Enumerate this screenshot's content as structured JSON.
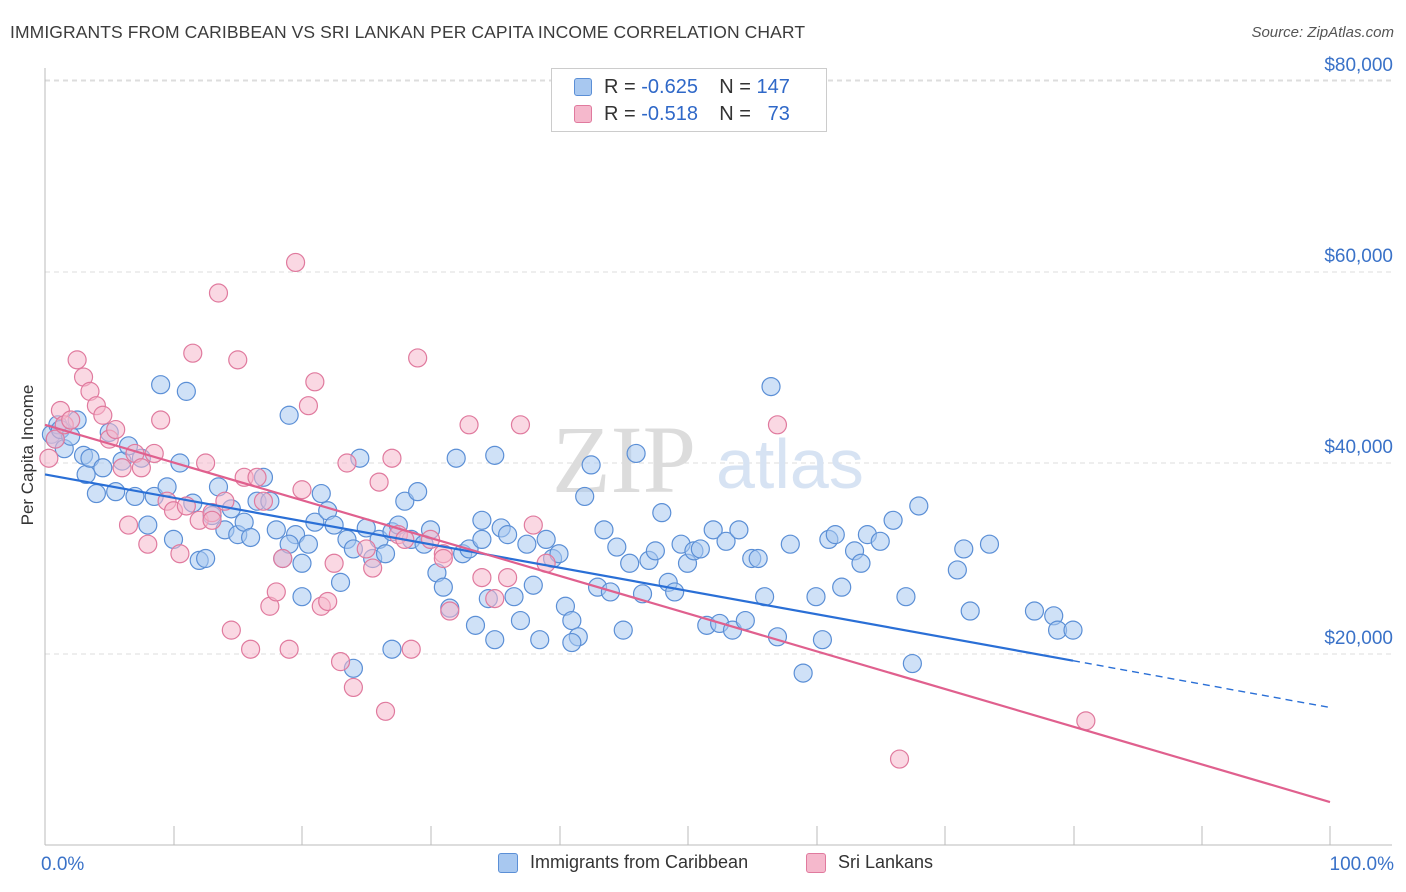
{
  "title": "IMMIGRANTS FROM CARIBBEAN VS SRI LANKAN PER CAPITA INCOME CORRELATION CHART",
  "source": "Source: ZipAtlas.com",
  "watermark": {
    "zip": "ZIP",
    "atlas": "atlas"
  },
  "colors": {
    "blue_fill": "#a8c8f0",
    "blue_stroke": "#5b8fd6",
    "blue_line": "#2a6fd6",
    "pink_fill": "#f5b8cc",
    "pink_stroke": "#e07a9e",
    "pink_line": "#e0608e",
    "axis_text": "#3a72c8",
    "grid": "#dddddd"
  },
  "legend": {
    "rows": [
      {
        "r_label": "R =",
        "r_value": "-0.625",
        "n_label": "N =",
        "n_value": "147",
        "color": "blue"
      },
      {
        "r_label": "R =",
        "r_value": "-0.518",
        "n_label": "N =",
        "n_value": "73",
        "color": "pink"
      }
    ]
  },
  "bottom_legend": {
    "series1": "Immigrants from Caribbean",
    "series2": "Sri Lankans"
  },
  "chart_data": {
    "type": "scatter",
    "ylabel": "Per Capita Income",
    "xlabel": "",
    "x_tick_labels": {
      "min": "0.0%",
      "max": "100.0%"
    },
    "xlim": [
      0,
      100
    ],
    "ylim": [
      0,
      80000
    ],
    "y_ticks": [
      {
        "value": 20000,
        "label": "$20,000"
      },
      {
        "value": 40000,
        "label": "$40,000"
      },
      {
        "value": 60000,
        "label": "$60,000"
      },
      {
        "value": 80000,
        "label": "$80,000"
      }
    ],
    "grid": true,
    "series": [
      {
        "name": "Immigrants from Caribbean",
        "color": "blue",
        "trend": {
          "x0": 0,
          "y0": 38800,
          "x1": 80,
          "y1": 19300,
          "dashed_to_x": 100,
          "dashed_to_y": 14400
        },
        "points": [
          [
            0.5,
            43000
          ],
          [
            0.8,
            42500
          ],
          [
            1,
            44000
          ],
          [
            1.2,
            43500
          ],
          [
            1.5,
            41500
          ],
          [
            2,
            42800
          ],
          [
            2.5,
            44500
          ],
          [
            3,
            40800
          ],
          [
            3.2,
            38800
          ],
          [
            3.5,
            40500
          ],
          [
            4,
            36800
          ],
          [
            4.5,
            39500
          ],
          [
            5,
            43200
          ],
          [
            5.5,
            37000
          ],
          [
            6,
            40200
          ],
          [
            6.5,
            41800
          ],
          [
            7,
            36500
          ],
          [
            7.5,
            40500
          ],
          [
            8,
            33500
          ],
          [
            8.5,
            36500
          ],
          [
            9,
            48200
          ],
          [
            9.5,
            37500
          ],
          [
            10,
            32000
          ],
          [
            10.5,
            40000
          ],
          [
            11,
            47500
          ],
          [
            11.5,
            35800
          ],
          [
            12,
            29800
          ],
          [
            12.5,
            30000
          ],
          [
            13,
            34500
          ],
          [
            13.5,
            37500
          ],
          [
            14,
            33000
          ],
          [
            14.5,
            35200
          ],
          [
            15,
            32500
          ],
          [
            15.5,
            33800
          ],
          [
            16,
            32200
          ],
          [
            16.5,
            36000
          ],
          [
            17,
            38500
          ],
          [
            17.5,
            36000
          ],
          [
            18,
            33000
          ],
          [
            18.5,
            30000
          ],
          [
            19,
            45000
          ],
          [
            19.5,
            32500
          ],
          [
            20,
            29500
          ],
          [
            20.5,
            31500
          ],
          [
            21,
            33800
          ],
          [
            21.5,
            36800
          ],
          [
            22,
            35000
          ],
          [
            22.5,
            33500
          ],
          [
            23,
            27500
          ],
          [
            23.5,
            32000
          ],
          [
            24,
            31000
          ],
          [
            24.5,
            40500
          ],
          [
            25,
            33200
          ],
          [
            25.5,
            30000
          ],
          [
            26,
            32000
          ],
          [
            26.5,
            30500
          ],
          [
            27,
            32800
          ],
          [
            27.5,
            33500
          ],
          [
            28,
            36000
          ],
          [
            28.5,
            32000
          ],
          [
            29,
            37000
          ],
          [
            29.5,
            31500
          ],
          [
            30,
            33000
          ],
          [
            30.5,
            28500
          ],
          [
            31,
            27000
          ],
          [
            31.5,
            24800
          ],
          [
            32,
            40500
          ],
          [
            32.5,
            30500
          ],
          [
            33,
            31000
          ],
          [
            33.5,
            23000
          ],
          [
            34,
            32000
          ],
          [
            34.5,
            25800
          ],
          [
            35,
            40800
          ],
          [
            35.5,
            33200
          ],
          [
            36,
            32500
          ],
          [
            36.5,
            26000
          ],
          [
            37,
            23500
          ],
          [
            37.5,
            31500
          ],
          [
            38,
            27200
          ],
          [
            38.5,
            21500
          ],
          [
            39,
            32000
          ],
          [
            39.5,
            30000
          ],
          [
            40,
            30500
          ],
          [
            40.5,
            25000
          ],
          [
            41,
            23500
          ],
          [
            41.5,
            21800
          ],
          [
            42,
            36500
          ],
          [
            42.5,
            39800
          ],
          [
            43,
            27000
          ],
          [
            43.5,
            33000
          ],
          [
            44,
            26500
          ],
          [
            44.5,
            31200
          ],
          [
            45,
            22500
          ],
          [
            45.5,
            29500
          ],
          [
            46,
            41000
          ],
          [
            46.5,
            26300
          ],
          [
            47,
            29800
          ],
          [
            47.5,
            30800
          ],
          [
            48,
            34800
          ],
          [
            48.5,
            27500
          ],
          [
            49,
            26500
          ],
          [
            49.5,
            31500
          ],
          [
            50,
            29500
          ],
          [
            50.5,
            30800
          ],
          [
            51,
            31000
          ],
          [
            51.5,
            23000
          ],
          [
            52,
            33000
          ],
          [
            52.5,
            23200
          ],
          [
            53,
            31800
          ],
          [
            53.5,
            22500
          ],
          [
            54,
            33000
          ],
          [
            54.5,
            23500
          ],
          [
            55,
            30000
          ],
          [
            56,
            26000
          ],
          [
            56.5,
            48000
          ],
          [
            57,
            21800
          ],
          [
            58,
            31500
          ],
          [
            59,
            18000
          ],
          [
            60,
            26000
          ],
          [
            61,
            32000
          ],
          [
            61.5,
            32500
          ],
          [
            62,
            27000
          ],
          [
            63,
            30800
          ],
          [
            63.5,
            29500
          ],
          [
            64,
            32500
          ],
          [
            65,
            31800
          ],
          [
            66,
            34000
          ],
          [
            67,
            26000
          ],
          [
            67.5,
            19000
          ],
          [
            68,
            35500
          ],
          [
            71,
            28800
          ],
          [
            71.5,
            31000
          ],
          [
            72,
            24500
          ],
          [
            73.5,
            31500
          ],
          [
            77,
            24500
          ],
          [
            78.5,
            24000
          ],
          [
            78.8,
            22500
          ],
          [
            80,
            22500
          ],
          [
            55.5,
            30000
          ],
          [
            24,
            18500
          ],
          [
            20,
            26000
          ],
          [
            27,
            20500
          ],
          [
            35,
            21500
          ],
          [
            41,
            21200
          ],
          [
            60.5,
            21500
          ],
          [
            19,
            31500
          ],
          [
            34,
            34000
          ]
        ]
      },
      {
        "name": "Sri Lankans",
        "color": "pink",
        "trend": {
          "x0": 0,
          "y0": 44000,
          "x1": 100,
          "y1": 4500
        },
        "points": [
          [
            0.3,
            40500
          ],
          [
            0.8,
            42500
          ],
          [
            1.2,
            45500
          ],
          [
            1.5,
            44000
          ],
          [
            2.5,
            50800
          ],
          [
            3,
            49000
          ],
          [
            3.5,
            47500
          ],
          [
            4,
            46000
          ],
          [
            4.5,
            45000
          ],
          [
            5,
            42500
          ],
          [
            5.5,
            43500
          ],
          [
            6,
            39500
          ],
          [
            6.5,
            33500
          ],
          [
            7,
            41000
          ],
          [
            7.5,
            39500
          ],
          [
            8,
            31500
          ],
          [
            8.5,
            41000
          ],
          [
            9,
            44500
          ],
          [
            9.5,
            36000
          ],
          [
            10,
            35000
          ],
          [
            10.5,
            30500
          ],
          [
            11,
            35500
          ],
          [
            11.5,
            51500
          ],
          [
            12,
            34000
          ],
          [
            12.5,
            40000
          ],
          [
            13,
            34800
          ],
          [
            13.5,
            57800
          ],
          [
            14,
            36000
          ],
          [
            14.5,
            22500
          ],
          [
            15,
            50800
          ],
          [
            15.5,
            38500
          ],
          [
            16,
            20500
          ],
          [
            16.5,
            38500
          ],
          [
            17,
            36000
          ],
          [
            17.5,
            25000
          ],
          [
            18,
            26500
          ],
          [
            18.5,
            30000
          ],
          [
            19,
            20500
          ],
          [
            19.5,
            61000
          ],
          [
            20,
            37200
          ],
          [
            20.5,
            46000
          ],
          [
            21,
            48500
          ],
          [
            21.5,
            25000
          ],
          [
            22,
            25500
          ],
          [
            22.5,
            29500
          ],
          [
            23,
            19200
          ],
          [
            23.5,
            40000
          ],
          [
            24,
            16500
          ],
          [
            25,
            31000
          ],
          [
            25.5,
            29000
          ],
          [
            26,
            38000
          ],
          [
            26.5,
            14000
          ],
          [
            27,
            40500
          ],
          [
            27.5,
            32500
          ],
          [
            28,
            32000
          ],
          [
            28.5,
            20500
          ],
          [
            29,
            51000
          ],
          [
            30,
            32000
          ],
          [
            31,
            30500
          ],
          [
            31.5,
            24500
          ],
          [
            33,
            44000
          ],
          [
            34,
            28000
          ],
          [
            35,
            25800
          ],
          [
            36,
            28000
          ],
          [
            37,
            44000
          ],
          [
            38,
            33500
          ],
          [
            39,
            29500
          ],
          [
            57,
            44000
          ],
          [
            13,
            34000
          ],
          [
            31,
            30000
          ],
          [
            81,
            13000
          ],
          [
            66.5,
            9000
          ],
          [
            2,
            44500
          ]
        ]
      }
    ]
  }
}
